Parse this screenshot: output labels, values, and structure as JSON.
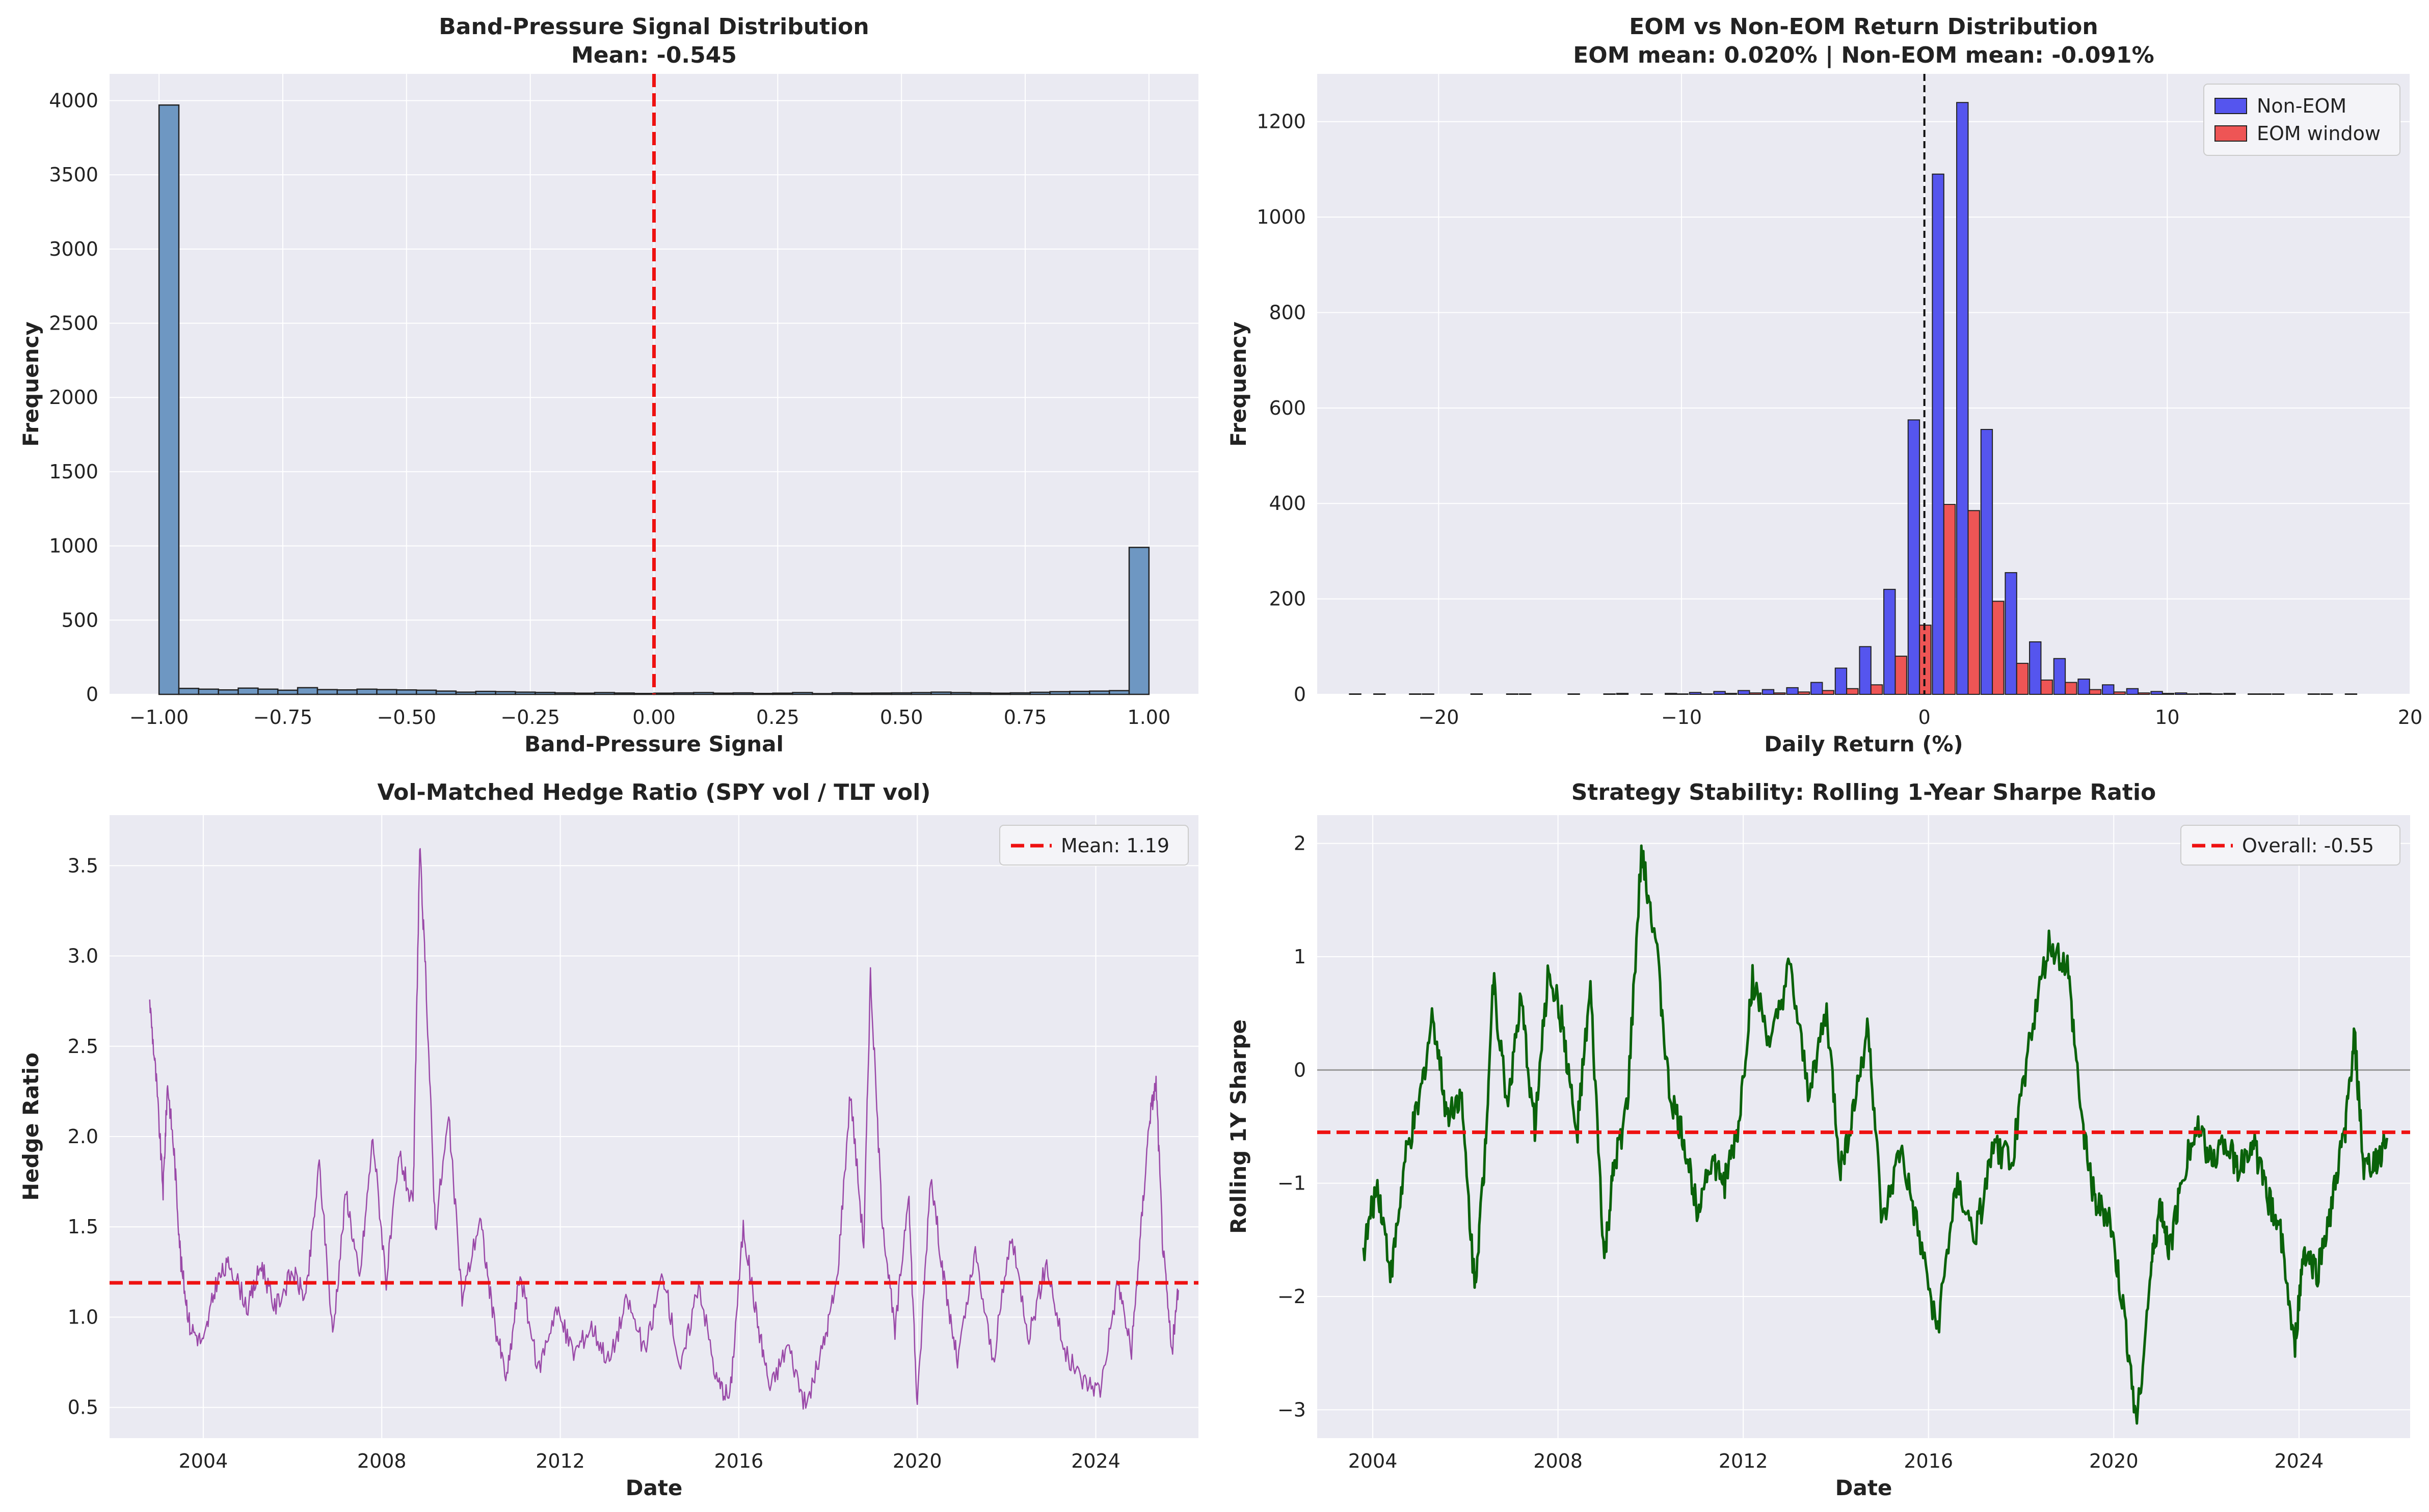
{
  "colors": {
    "panel_bg": "#EAEAF2",
    "grid": "#FFFFFF",
    "steelblue": "#6E97C2",
    "non_eom": "#5555EE",
    "eom": "#EE5555",
    "mean_line": "#EE1111",
    "hedge_line": "#9A49A8",
    "sharpe_line": "#0A620A",
    "zero_line": "#999999"
  },
  "panels": [
    {
      "title": "Band-Pressure Signal Distribution",
      "subtitle": "Mean: -0.545",
      "xlabel": "Band-Pressure Signal",
      "ylabel": "Frequency",
      "xticks": [
        "−1.00",
        "−0.75",
        "−0.50",
        "−0.25",
        "0.00",
        "0.25",
        "0.50",
        "0.75",
        "1.00"
      ],
      "yticks": [
        "0",
        "500",
        "1000",
        "1500",
        "2000",
        "2500",
        "3000",
        "3500",
        "4000"
      ]
    },
    {
      "title": "EOM vs Non-EOM Return Distribution",
      "subtitle": "EOM mean: 0.020% | Non-EOM mean: -0.091%",
      "xlabel": "Daily Return (%)",
      "ylabel": "Frequency",
      "xticks": [
        "−20",
        "−10",
        "0",
        "10",
        "20"
      ],
      "yticks": [
        "0",
        "200",
        "400",
        "600",
        "800",
        "1000",
        "1200"
      ],
      "legend": [
        "Non-EOM",
        "EOM window"
      ]
    },
    {
      "title": "Vol-Matched Hedge Ratio (SPY vol / TLT vol)",
      "xlabel": "Date",
      "ylabel": "Hedge Ratio",
      "xticks": [
        "2004",
        "2008",
        "2012",
        "2016",
        "2020",
        "2024"
      ],
      "yticks": [
        "0.5",
        "1.0",
        "1.5",
        "2.0",
        "2.5",
        "3.0",
        "3.5"
      ],
      "legend": [
        "Mean: 1.19"
      ]
    },
    {
      "title": "Strategy Stability: Rolling 1-Year Sharpe Ratio",
      "xlabel": "Date",
      "ylabel": "Rolling 1Y Sharpe",
      "xticks": [
        "2004",
        "2008",
        "2012",
        "2016",
        "2020",
        "2024"
      ],
      "yticks": [
        "−3",
        "−2",
        "−1",
        "0",
        "1",
        "2"
      ],
      "legend": [
        "Overall: -0.55"
      ]
    }
  ],
  "chart_data": [
    {
      "type": "bar",
      "title": "Band-Pressure Signal Distribution",
      "subtitle": "Mean: -0.545",
      "xlabel": "Band-Pressure Signal",
      "ylabel": "Frequency",
      "xlim": [
        -1.1,
        1.1
      ],
      "ylim": [
        0,
        4180
      ],
      "bin_start": -1.0,
      "bin_width": 0.04,
      "values": [
        3970,
        40,
        35,
        30,
        42,
        35,
        28,
        45,
        32,
        30,
        35,
        32,
        30,
        28,
        22,
        15,
        20,
        18,
        15,
        13,
        10,
        8,
        12,
        9,
        6,
        8,
        10,
        12,
        8,
        10,
        6,
        8,
        12,
        5,
        10,
        8,
        9,
        10,
        12,
        15,
        12,
        10,
        8,
        10,
        14,
        18,
        20,
        22,
        25,
        990
      ],
      "mean_line": -0.545,
      "vline_x": 0.0,
      "grid": true
    },
    {
      "type": "bar",
      "title": "EOM vs Non-EOM Return Distribution",
      "subtitle": "EOM mean: 0.020% | Non-EOM mean: -0.091%",
      "xlabel": "Daily Return (%)",
      "ylabel": "Frequency",
      "xlim": [
        -25,
        20
      ],
      "ylim": [
        0,
        1300
      ],
      "x": [
        -23.2,
        -22.2,
        -21.2,
        -20.2,
        -19.2,
        -18.2,
        -17.2,
        -16.2,
        -15.2,
        -14.2,
        -13.2,
        -12.2,
        -11.2,
        -10.2,
        -9.2,
        -8.2,
        -7.2,
        -6.2,
        -5.2,
        -4.2,
        -3.2,
        -2.2,
        -1.2,
        -0.2,
        0.8,
        1.8,
        2.8,
        3.8,
        4.8,
        5.8,
        6.8,
        7.8,
        8.8,
        9.8,
        10.8,
        11.8,
        12.8,
        13.8,
        14.8,
        15.8,
        16.8,
        17.8
      ],
      "series": [
        {
          "name": "Non-EOM",
          "values": [
            1,
            1,
            0,
            1,
            0,
            1,
            0,
            1,
            0,
            1,
            0,
            2,
            1,
            2,
            4,
            6,
            8,
            10,
            14,
            25,
            55,
            100,
            220,
            575,
            1090,
            1240,
            555,
            255,
            110,
            75,
            32,
            20,
            12,
            6,
            3,
            2,
            2,
            1,
            1,
            0,
            1,
            1
          ]
        },
        {
          "name": "EOM window",
          "values": [
            0,
            0,
            1,
            0,
            0,
            0,
            1,
            0,
            0,
            0,
            1,
            0,
            0,
            1,
            1,
            2,
            3,
            3,
            5,
            8,
            12,
            20,
            80,
            145,
            398,
            385,
            195,
            65,
            30,
            25,
            10,
            5,
            3,
            2,
            1,
            1,
            0,
            1,
            0,
            1,
            0,
            0
          ]
        }
      ],
      "vline_x": 0,
      "legend_position": "top-right",
      "grid": true
    },
    {
      "type": "line",
      "title": "Vol-Matched Hedge Ratio (SPY vol / TLT vol)",
      "xlabel": "Date",
      "ylabel": "Hedge Ratio",
      "xlim": [
        2001.9,
        2026.3
      ],
      "ylim": [
        0.33,
        3.78
      ],
      "series": [
        {
          "x": [
            2002.8,
            2002.95,
            2003.1,
            2003.2,
            2003.35,
            2003.5,
            2003.7,
            2004.0,
            2004.3,
            2004.6,
            2005.0,
            2005.3,
            2005.6,
            2006.0,
            2006.3,
            2006.6,
            2006.9,
            2007.2,
            2007.5,
            2007.8,
            2008.1,
            2008.4,
            2008.7,
            2008.85,
            2009.0,
            2009.2,
            2009.5,
            2009.8,
            2010.2,
            2010.5,
            2010.8,
            2011.1,
            2011.5,
            2011.9,
            2012.3,
            2012.7,
            2013.1,
            2013.5,
            2013.9,
            2014.3,
            2014.7,
            2015.1,
            2015.5,
            2015.8,
            2016.1,
            2016.4,
            2016.7,
            2017.1,
            2017.5,
            2017.9,
            2018.2,
            2018.5,
            2018.8,
            2018.95,
            2019.2,
            2019.5,
            2019.8,
            2020.0,
            2020.3,
            2020.6,
            2020.9,
            2021.3,
            2021.7,
            2022.1,
            2022.5,
            2022.9,
            2023.3,
            2023.7,
            2024.1,
            2024.5,
            2024.8,
            2025.0,
            2025.2,
            2025.35,
            2025.5,
            2025.7,
            2025.85
          ],
          "y": [
            2.75,
            2.3,
            1.7,
            2.3,
            1.9,
            1.3,
            0.95,
            0.85,
            1.2,
            1.3,
            1.05,
            1.3,
            1.05,
            1.25,
            1.1,
            1.85,
            0.9,
            1.7,
            1.2,
            2.0,
            1.2,
            1.9,
            1.6,
            3.6,
            2.8,
            1.5,
            2.1,
            1.1,
            1.55,
            1.0,
            0.65,
            1.25,
            0.7,
            1.05,
            0.8,
            0.95,
            0.75,
            1.1,
            0.8,
            1.25,
            0.7,
            1.2,
            0.65,
            0.55,
            1.5,
            1.0,
            0.6,
            0.85,
            0.5,
            0.85,
            1.2,
            2.25,
            1.4,
            2.9,
            1.6,
            0.9,
            1.7,
            0.5,
            1.8,
            1.2,
            0.75,
            1.35,
            0.75,
            1.45,
            0.9,
            1.3,
            0.8,
            0.65,
            0.6,
            1.2,
            0.8,
            1.45,
            2.1,
            2.3,
            1.4,
            0.8,
            1.15
          ]
        }
      ],
      "mean_line": 1.19,
      "legend_position": "top-right",
      "grid": true
    },
    {
      "type": "line",
      "title": "Strategy Stability: Rolling 1-Year Sharpe Ratio",
      "xlabel": "Date",
      "ylabel": "Rolling 1Y Sharpe",
      "xlim": [
        2002.8,
        2026.4
      ],
      "ylim": [
        -3.25,
        2.25
      ],
      "series": [
        {
          "x": [
            2003.8,
            2004.1,
            2004.4,
            2004.7,
            2005.0,
            2005.3,
            2005.6,
            2005.9,
            2006.2,
            2006.4,
            2006.6,
            2006.9,
            2007.2,
            2007.5,
            2007.8,
            2008.1,
            2008.4,
            2008.7,
            2009.0,
            2009.2,
            2009.5,
            2009.8,
            2010.1,
            2010.4,
            2010.7,
            2011.0,
            2011.3,
            2011.6,
            2011.9,
            2012.2,
            2012.6,
            2013.0,
            2013.4,
            2013.8,
            2014.1,
            2014.4,
            2014.7,
            2015.0,
            2015.4,
            2015.8,
            2016.2,
            2016.6,
            2017.0,
            2017.4,
            2017.8,
            2018.2,
            2018.6,
            2019.0,
            2019.3,
            2019.6,
            2019.9,
            2020.2,
            2020.5,
            2020.8,
            2021.0,
            2021.2,
            2021.5,
            2021.8,
            2022.1,
            2022.4,
            2022.7,
            2023.0,
            2023.3,
            2023.6,
            2023.9,
            2024.1,
            2024.4,
            2024.7,
            2025.0,
            2025.2,
            2025.4,
            2025.7,
            2025.9
          ],
          "y": [
            -1.6,
            -1.0,
            -1.8,
            -0.8,
            -0.3,
            0.5,
            -0.4,
            -0.2,
            -1.9,
            -0.9,
            0.8,
            -0.3,
            0.6,
            -0.5,
            0.9,
            0.4,
            -0.6,
            0.7,
            -1.7,
            -0.9,
            -0.3,
            1.9,
            1.2,
            -0.2,
            -0.6,
            -1.2,
            -0.8,
            -1.0,
            -0.5,
            0.8,
            0.2,
            0.9,
            -0.2,
            0.5,
            -0.9,
            -0.3,
            0.4,
            -1.4,
            -0.7,
            -1.5,
            -2.3,
            -1.0,
            -1.5,
            -0.7,
            -0.8,
            0.3,
            1.1,
            0.9,
            -0.4,
            -1.2,
            -1.3,
            -2.1,
            -3.1,
            -1.8,
            -1.2,
            -1.6,
            -0.9,
            -0.5,
            -0.8,
            -0.6,
            -0.9,
            -0.6,
            -1.1,
            -1.4,
            -2.5,
            -1.6,
            -1.8,
            -1.2,
            -0.5,
            0.3,
            -0.9,
            -0.8,
            -0.6
          ]
        }
      ],
      "mean_line": -0.55,
      "hline_zero": 0,
      "legend_position": "top-right",
      "grid": true
    }
  ]
}
